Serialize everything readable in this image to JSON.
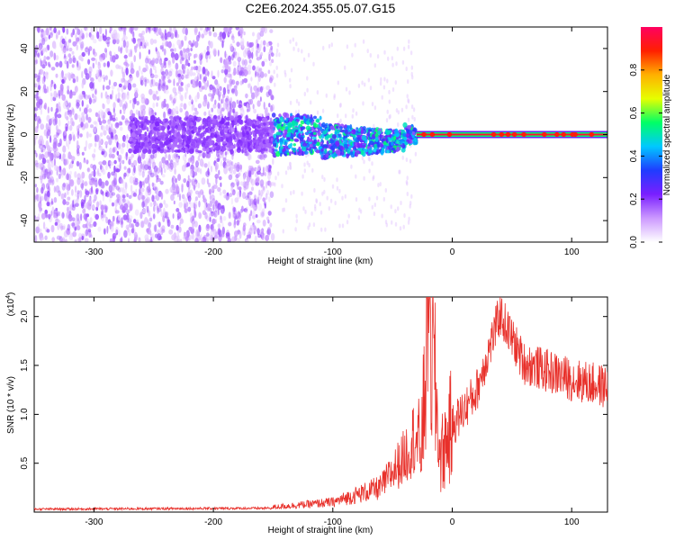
{
  "figure": {
    "title": "C2E6.2024.355.05.07.G15"
  },
  "chart_data": [
    {
      "type": "heatmap",
      "xlabel": "Height of straight line (km)",
      "ylabel": "Frequency (Hz)",
      "xlim": [
        -350,
        130
      ],
      "ylim": [
        -50,
        50
      ],
      "xticks": [
        -300,
        -200,
        -100,
        0,
        100
      ],
      "yticks": [
        -40,
        -20,
        0,
        20,
        40
      ],
      "colorbar": {
        "label": "Normalized spectral amplitude",
        "range": [
          0,
          1
        ],
        "ticks": [
          0.0,
          0.2,
          0.4,
          0.6,
          0.8
        ],
        "tick_labels": [
          "0.0",
          "0.2",
          "0.4",
          "0.6",
          "0.8"
        ],
        "colormap": [
          "#ffffff",
          "#cc99ff",
          "#7a1fff",
          "#1f3cff",
          "#00c8ff",
          "#00ff66",
          "#e6ff00",
          "#ffb000",
          "#ff2000",
          "#ff0060"
        ]
      },
      "regions": [
        {
          "name": "noise",
          "x": [
            -350,
            -150
          ],
          "freq_spread": [
            -50,
            50
          ],
          "amplitude": 0.1
        },
        {
          "name": "transition",
          "x": [
            -150,
            -30
          ],
          "freq_center": 0,
          "freq_spread": [
            -10,
            10
          ],
          "amplitude": 0.35
        },
        {
          "name": "carrier",
          "x": [
            -30,
            130
          ],
          "freq_center": 0,
          "amplitude": 0.95
        }
      ]
    },
    {
      "type": "line",
      "xlabel": "Height of straight line (km)",
      "ylabel": "SNR (10 * v/v)",
      "y_multiplier": "(x10",
      "y_multiplier_exp": "4",
      "y_multiplier_close": ")",
      "xlim": [
        -350,
        130
      ],
      "ylim": [
        0,
        2.2
      ],
      "xticks": [
        -300,
        -200,
        -100,
        0,
        100
      ],
      "yticks": [
        0.5,
        1.0,
        1.5,
        2.0
      ],
      "ytick_labels": [
        "0.5",
        "1.0",
        "1.5",
        "2.0"
      ],
      "color": "#e8302a",
      "envelope_key_points": [
        {
          "x": -350,
          "y": 0.03
        },
        {
          "x": -150,
          "y": 0.04
        },
        {
          "x": -100,
          "y": 0.08
        },
        {
          "x": -60,
          "y": 0.2
        },
        {
          "x": -40,
          "y": 0.45
        },
        {
          "x": -25,
          "y": 0.75
        },
        {
          "x": -20,
          "y": 2.2
        },
        {
          "x": -10,
          "y": 0.55
        },
        {
          "x": 0,
          "y": 0.9
        },
        {
          "x": 20,
          "y": 1.25
        },
        {
          "x": 40,
          "y": 2.05
        },
        {
          "x": 60,
          "y": 1.55
        },
        {
          "x": 100,
          "y": 1.38
        },
        {
          "x": 130,
          "y": 1.3
        }
      ]
    }
  ]
}
